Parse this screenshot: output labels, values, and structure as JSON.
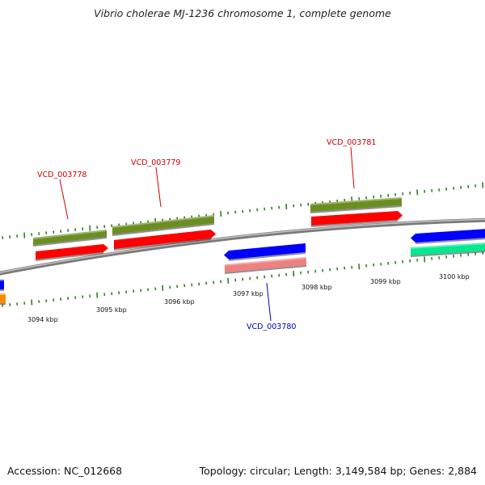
{
  "title": "Vibrio cholerae MJ-1236 chromosome 1, complete genome",
  "footer": {
    "accession": "Accession: NC_012668",
    "stats": "Topology: circular; Length: 3,149,584 bp; Genes: 2,884"
  },
  "colors": {
    "backbone": "#8a8a8a",
    "tick": "#2f7f1f",
    "forward_gene_label": "#cc0000",
    "reverse_gene_label": "#0000bb",
    "cds_forward": "#ff0000",
    "cds_reverse_blue": "#0000ff",
    "gene_olive": "#6b8e23",
    "cds_pink": "#f08080",
    "cds_teal": "#00e890",
    "cds_orange": "#ff8c00"
  },
  "scale_labels": [
    "3094 kbp",
    "3095 kbp",
    "3096 kbp",
    "3097 kbp",
    "3098 kbp",
    "3099 kbp",
    "3100 kbp"
  ],
  "gene_labels": [
    {
      "name": "VCD_003778",
      "strand": "forward"
    },
    {
      "name": "VCD_003779",
      "strand": "forward"
    },
    {
      "name": "VCD_003780",
      "strand": "reverse"
    },
    {
      "name": "VCD_003781",
      "strand": "forward"
    }
  ]
}
